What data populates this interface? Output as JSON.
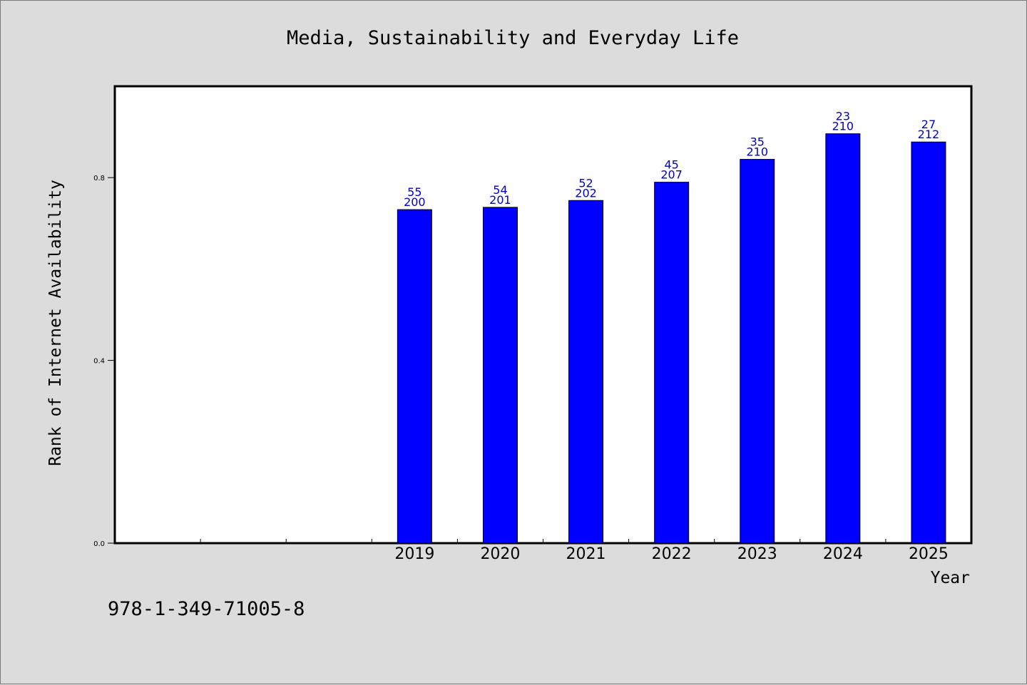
{
  "chart_data": {
    "type": "bar",
    "title": "Media, Sustainability and Everyday Life",
    "xlabel": "Year",
    "ylabel": "Rank of Internet Availability",
    "categories": [
      "",
      "",
      "",
      "2019",
      "2020",
      "2021",
      "2022",
      "2023",
      "2024",
      "2025"
    ],
    "values": [
      null,
      null,
      null,
      0.73,
      0.735,
      0.75,
      0.79,
      0.84,
      0.896,
      0.878
    ],
    "bar_labels": [
      null,
      null,
      null,
      [
        "55",
        "200"
      ],
      [
        "54",
        "201"
      ],
      [
        "52",
        "202"
      ],
      [
        "45",
        "207"
      ],
      [
        "35",
        "210"
      ],
      [
        "23",
        "210"
      ],
      [
        "27",
        "212"
      ]
    ],
    "ylim": [
      0,
      1.0
    ],
    "yticks": [
      0.0,
      0.4,
      0.8
    ],
    "ytick_labels": [
      "0.0",
      "0.4",
      "0.8"
    ],
    "bar_color": "#0000ff",
    "label_color": "#0000cc",
    "grid": false,
    "legend": "none"
  },
  "footer": {
    "isbn": "978-1-349-71005-8"
  },
  "colors": {
    "background": "#dcdcdc",
    "plot_background": "#ffffff",
    "bar": "#0000ff",
    "label": "#0000cc"
  }
}
